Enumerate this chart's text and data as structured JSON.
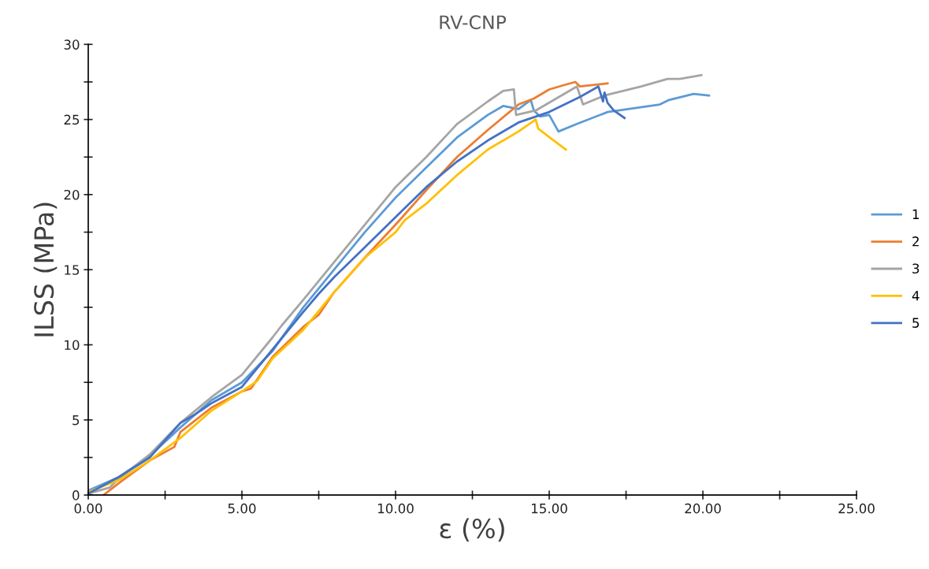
{
  "chart_data": {
    "type": "line",
    "title": "RV-CNP",
    "xlabel": "ε (%)",
    "ylabel": "ILSS (MPa)",
    "xlim": [
      0,
      25
    ],
    "ylim": [
      0,
      30
    ],
    "xticks": [
      {
        "value": 0,
        "label": "0.00"
      },
      {
        "value": 2.5,
        "label": null
      },
      {
        "value": 5,
        "label": "5.00"
      },
      {
        "value": 7.5,
        "label": null
      },
      {
        "value": 10,
        "label": "10.00"
      },
      {
        "value": 12.5,
        "label": null
      },
      {
        "value": 15,
        "label": "15.00"
      },
      {
        "value": 17.5,
        "label": null
      },
      {
        "value": 20,
        "label": "20.00"
      },
      {
        "value": 22.5,
        "label": null
      },
      {
        "value": 25,
        "label": "25.00"
      }
    ],
    "yticks": [
      0,
      {
        "value": 2.5,
        "label": null
      },
      5,
      {
        "value": 7.5,
        "label": null
      },
      10,
      {
        "value": 12.5,
        "label": null
      },
      15,
      {
        "value": 17.5,
        "label": null
      },
      20,
      {
        "value": 22.5,
        "label": null
      },
      25,
      {
        "value": 27.5,
        "label": null
      },
      30
    ],
    "grid": false,
    "legend": "right",
    "marker": "none",
    "line_style": "solid",
    "series": [
      {
        "name": "1",
        "color": "#5b9bd5",
        "x": [
          0,
          1,
          2,
          3,
          3.5,
          4,
          5,
          6,
          7,
          8,
          9,
          10,
          11,
          12,
          13,
          13.5,
          14,
          14.4,
          14.5,
          14.7,
          15.0,
          15.3,
          15.9,
          16.9,
          18.6,
          18.9,
          19.7,
          20.2
        ],
        "values": [
          0.3,
          1.2,
          2.6,
          4.5,
          5.4,
          6.3,
          7.5,
          9.6,
          12.5,
          15,
          17.5,
          19.8,
          21.8,
          23.8,
          25.3,
          25.9,
          25.7,
          26.3,
          25.6,
          25.2,
          25.3,
          24.2,
          24.7,
          25.5,
          26.0,
          26.3,
          26.7,
          26.6
        ]
      },
      {
        "name": "2",
        "color": "#ed7d31",
        "x": [
          0.5,
          1,
          2,
          2.8,
          3,
          4,
          5,
          5.3,
          6,
          7,
          7.5,
          8,
          9,
          10,
          11,
          12,
          13,
          14,
          14.5,
          15,
          15.5,
          15.85,
          16.0,
          16.9
        ],
        "values": [
          0,
          0.8,
          2.3,
          3.2,
          4.2,
          5.8,
          6.9,
          7.1,
          9.2,
          11.2,
          12,
          13.5,
          15.8,
          18,
          20.3,
          22.5,
          24.3,
          26.0,
          26.4,
          27,
          27.3,
          27.5,
          27.2,
          27.4
        ]
      },
      {
        "name": "3",
        "color": "#a5a5a5",
        "x": [
          0,
          0.7,
          1,
          2,
          3,
          4,
          5,
          6,
          6.3,
          7,
          8,
          9,
          10,
          11,
          12,
          13,
          13.5,
          13.85,
          13.92,
          14.56,
          15.9,
          16.1,
          16.8,
          18.0,
          18.85,
          19.25,
          19.95
        ],
        "values": [
          0.1,
          0.5,
          1.1,
          2.7,
          4.8,
          6.5,
          8,
          10.5,
          11.3,
          13,
          15.5,
          18,
          20.5,
          22.5,
          24.7,
          26.2,
          26.9,
          27.0,
          25.3,
          25.6,
          27.2,
          26.0,
          26.6,
          27.2,
          27.7,
          27.7,
          27.95
        ]
      },
      {
        "name": "4",
        "color": "#ffc000",
        "x": [
          0,
          1,
          2,
          3,
          4,
          5,
          5.5,
          6,
          7,
          8,
          9,
          10,
          10.3,
          11,
          12,
          13,
          14,
          14.56,
          14.64,
          15.08,
          15.54
        ],
        "values": [
          0.2,
          1,
          2.3,
          3.8,
          5.6,
          6.9,
          7.6,
          9.1,
          11,
          13.5,
          15.8,
          17.5,
          18.3,
          19.4,
          21.3,
          23,
          24.2,
          25.0,
          24.4,
          23.7,
          23.0
        ]
      },
      {
        "name": "5",
        "color": "#4472c4",
        "x": [
          0,
          1,
          2,
          3,
          3.5,
          4,
          5,
          6,
          7,
          7.5,
          8,
          9,
          10,
          11,
          12,
          13,
          14,
          15,
          15.5,
          16,
          16.6,
          16.75,
          16.8,
          16.9,
          17.1,
          17.45
        ],
        "values": [
          0.1,
          1.2,
          2.5,
          4.8,
          5.4,
          6.1,
          7.2,
          9.7,
          12.2,
          13.4,
          14.5,
          16.5,
          18.5,
          20.5,
          22.2,
          23.6,
          24.8,
          25.5,
          26.0,
          26.5,
          27.2,
          26.2,
          26.8,
          26.1,
          25.6,
          25.1
        ]
      }
    ]
  }
}
